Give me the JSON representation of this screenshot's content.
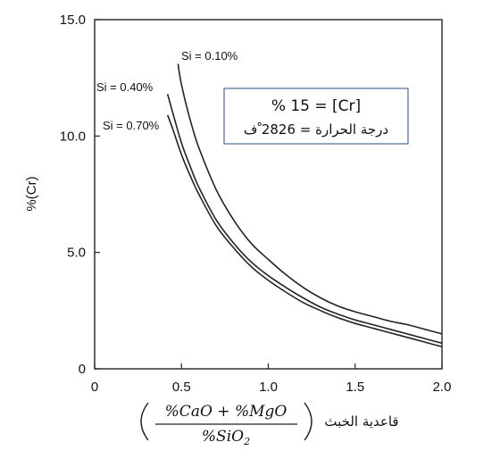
{
  "chart_data": {
    "type": "line",
    "title": "",
    "ylabel": "%(Cr)",
    "xlabel": "قاعدية الخبث",
    "xlabel_formula": {
      "numerator": "%CaO + %MgO",
      "denominator": "%SiO",
      "denominator_subscript": "2"
    },
    "xlim": [
      0,
      2.0
    ],
    "ylim": [
      0,
      15.0
    ],
    "x_ticks": [
      0,
      0.5,
      1.0,
      1.5,
      2.0
    ],
    "x_tick_labels": [
      "0",
      "0.5",
      "1.0",
      "1.5",
      "2.0"
    ],
    "y_ticks": [
      0,
      5.0,
      10.0,
      15.0
    ],
    "y_tick_labels": [
      "0",
      "5.0",
      "10.0",
      "15.0"
    ],
    "grid": false,
    "legend": null,
    "annotation_box": {
      "line1": "% 15 = [Cr]",
      "line2": "درجة الحرارة = 2826 ْف",
      "border_color": "#4a6f9a"
    },
    "series": [
      {
        "name": "Si = 0.10%",
        "x": [
          0.48,
          0.5,
          0.55,
          0.6,
          0.7,
          0.8,
          0.9,
          1.0,
          1.1,
          1.2,
          1.3,
          1.4,
          1.5,
          1.6,
          1.7,
          1.8,
          1.9,
          2.0
        ],
        "y": [
          13.1,
          12.2,
          10.7,
          9.5,
          7.7,
          6.4,
          5.4,
          4.7,
          4.05,
          3.5,
          3.05,
          2.7,
          2.45,
          2.25,
          2.05,
          1.9,
          1.7,
          1.5
        ]
      },
      {
        "name": "Si = 0.40%",
        "x": [
          0.42,
          0.45,
          0.5,
          0.55,
          0.6,
          0.7,
          0.8,
          0.9,
          1.0,
          1.1,
          1.2,
          1.3,
          1.4,
          1.5,
          1.6,
          1.7,
          1.8,
          1.9,
          2.0
        ],
        "y": [
          11.8,
          11.0,
          9.7,
          8.7,
          7.8,
          6.4,
          5.4,
          4.6,
          4.0,
          3.5,
          3.05,
          2.65,
          2.35,
          2.1,
          1.9,
          1.7,
          1.5,
          1.3,
          1.1
        ]
      },
      {
        "name": "Si = 0.70%",
        "x": [
          0.42,
          0.45,
          0.5,
          0.55,
          0.6,
          0.7,
          0.8,
          0.9,
          1.0,
          1.1,
          1.2,
          1.3,
          1.4,
          1.5,
          1.6,
          1.7,
          1.8,
          1.9,
          2.0
        ],
        "y": [
          10.9,
          10.3,
          9.2,
          8.3,
          7.5,
          6.15,
          5.2,
          4.4,
          3.8,
          3.3,
          2.85,
          2.5,
          2.2,
          1.95,
          1.75,
          1.55,
          1.35,
          1.15,
          0.95
        ]
      }
    ],
    "curve_labels": [
      "Si = 0.10%",
      "Si = 0.40%",
      "Si = 0.70%"
    ]
  }
}
